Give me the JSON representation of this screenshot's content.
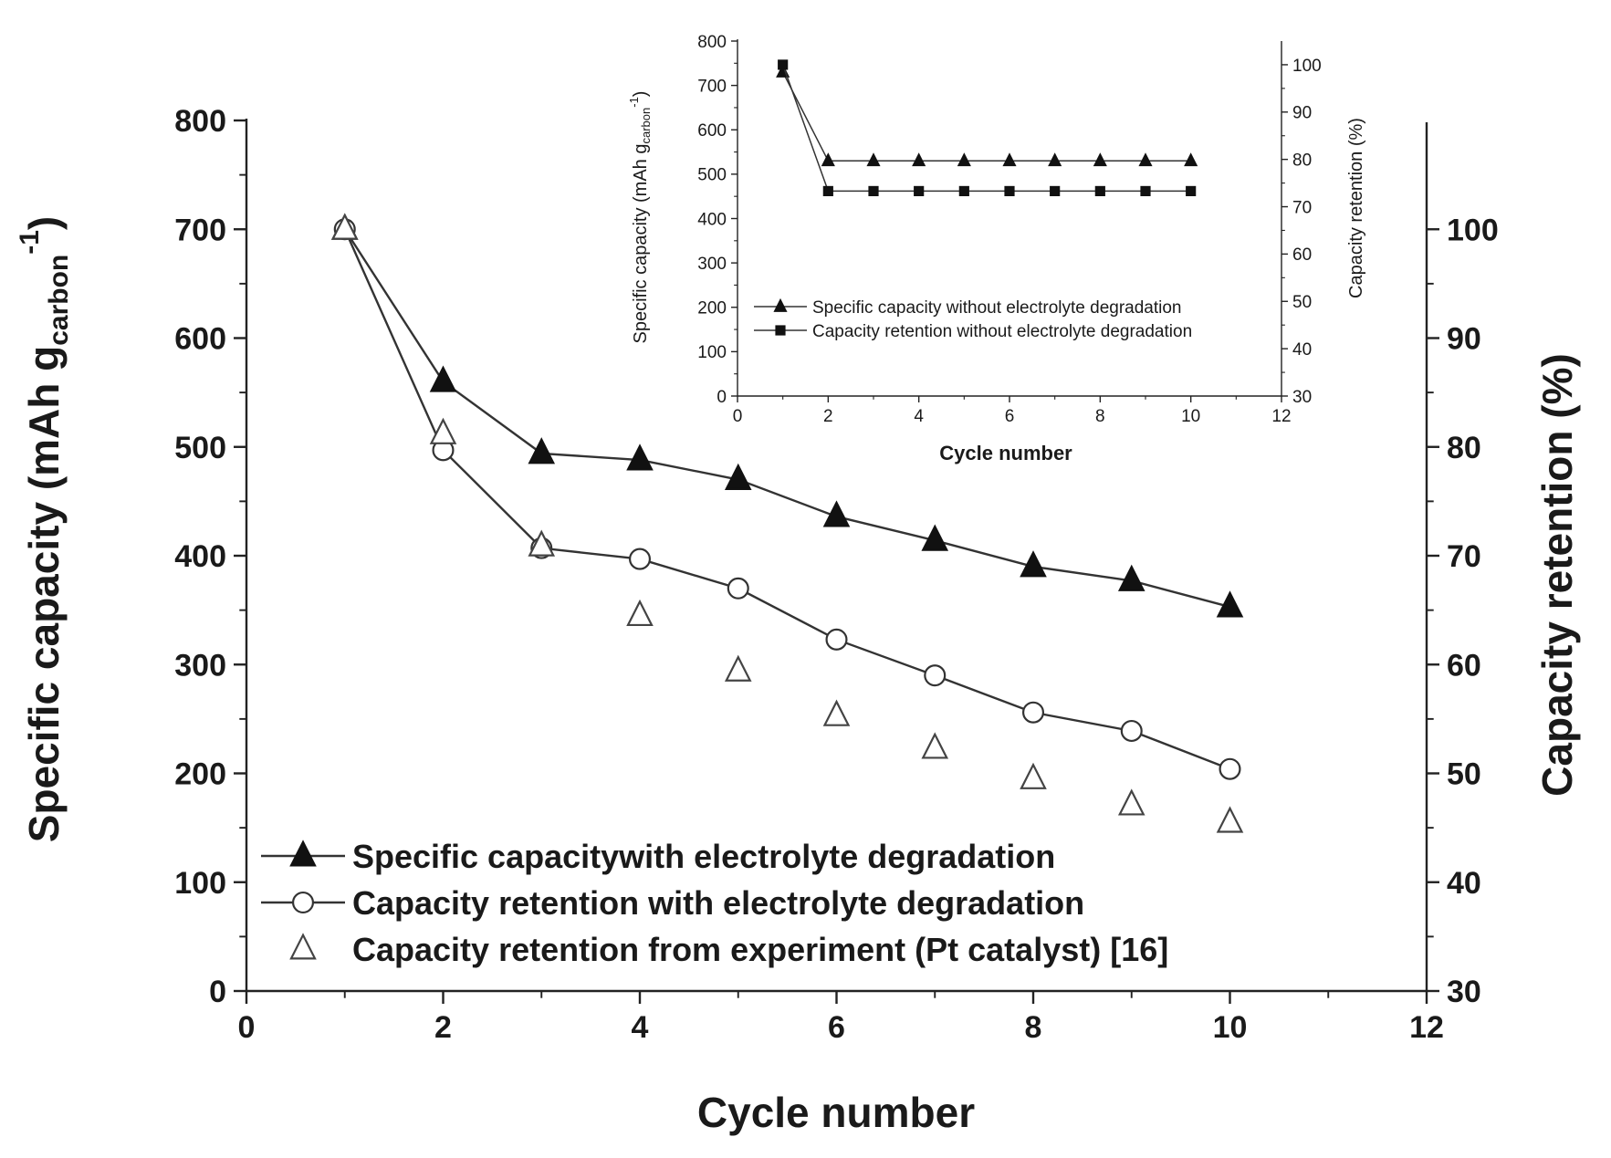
{
  "chart_data": [
    {
      "id": "main",
      "type": "line",
      "xlabel": "Cycle number",
      "ylabel_prefix": "Specific capacity (mAh g",
      "ylabel_sub": "carbon",
      "ylabel_sup": "-1",
      "ylabel_suffix": ")",
      "y2label": "Capacity retention (%)",
      "xlim": [
        0,
        12
      ],
      "ylim": [
        0,
        800
      ],
      "y2lim": [
        30,
        110
      ],
      "xticks": [
        0,
        2,
        4,
        6,
        8,
        10,
        12
      ],
      "yticks": [
        0,
        100,
        200,
        300,
        400,
        500,
        600,
        700,
        800
      ],
      "y2ticks": [
        30,
        40,
        50,
        60,
        70,
        80,
        90,
        100
      ],
      "legend_position": "bottom-left",
      "series": [
        {
          "name": "Specific capacitywith electrolyte degradation",
          "axis": "left",
          "marker": "filled-triangle",
          "line": true,
          "x": [
            1,
            2,
            3,
            4,
            5,
            6,
            7,
            8,
            9,
            10
          ],
          "y": [
            700,
            560,
            494,
            488,
            470,
            436,
            414,
            390,
            377,
            353
          ]
        },
        {
          "name": "Capacity retention with electrolyte degradation",
          "axis": "right",
          "marker": "open-circle",
          "line": true,
          "x": [
            1,
            2,
            3,
            4,
            5,
            6,
            7,
            8,
            9,
            10
          ],
          "y": [
            100,
            79.7,
            70.7,
            69.7,
            67,
            62.3,
            59,
            55.6,
            53.9,
            50.4
          ]
        },
        {
          "name": "Capacity retention from experiment (Pt catalyst) [16]",
          "axis": "right",
          "marker": "open-triangle",
          "line": false,
          "x": [
            1,
            2,
            3,
            4,
            5,
            6,
            7,
            8,
            9,
            10
          ],
          "y": [
            100,
            81.2,
            70.9,
            64.5,
            59.4,
            55.3,
            52.3,
            49.5,
            47.1,
            45.5
          ]
        }
      ]
    },
    {
      "id": "inset",
      "type": "line",
      "xlabel": "Cycle number",
      "ylabel_prefix": "Specific capacity (mAh g",
      "ylabel_sub": "carbon",
      "ylabel_sup": "-1",
      "ylabel_suffix": ")",
      "y2label": "Capacity retention (%)",
      "xlim": [
        0,
        12
      ],
      "ylim": [
        0,
        800
      ],
      "y2lim": [
        30,
        105
      ],
      "xticks": [
        0,
        2,
        4,
        6,
        8,
        10,
        12
      ],
      "yticks": [
        0,
        100,
        200,
        300,
        400,
        500,
        600,
        700,
        800
      ],
      "y2ticks": [
        30,
        40,
        50,
        60,
        70,
        80,
        90,
        100
      ],
      "legend_position": "lower-left",
      "series": [
        {
          "name": "Specific capacity without electrolyte degradation",
          "axis": "left",
          "marker": "filled-triangle",
          "line": true,
          "x": [
            1,
            2,
            3,
            4,
            5,
            6,
            7,
            8,
            9,
            10
          ],
          "y": [
            730,
            530,
            530,
            530,
            530,
            530,
            530,
            530,
            530,
            530
          ]
        },
        {
          "name": "Capacity retention without electrolyte degradation",
          "axis": "right",
          "marker": "filled-square",
          "line": true,
          "x": [
            1,
            2,
            3,
            4,
            5,
            6,
            7,
            8,
            9,
            10
          ],
          "y": [
            100,
            73.3,
            73.3,
            73.3,
            73.3,
            73.3,
            73.3,
            73.3,
            73.3,
            73.3
          ]
        }
      ]
    }
  ]
}
